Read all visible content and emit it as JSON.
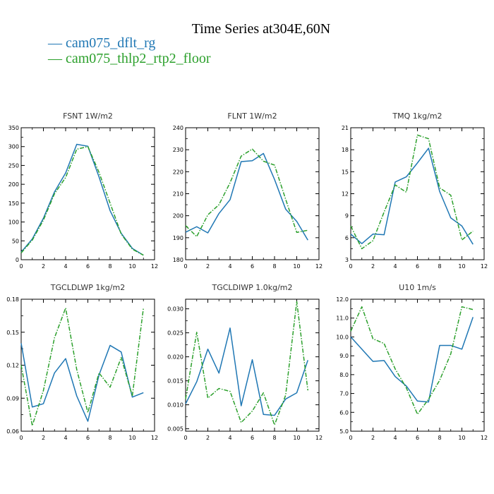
{
  "title": "Time Series at304E,60N",
  "legend": [
    {
      "dash": "—",
      "label": "cam075_dflt_rg",
      "color": "#1f77b4"
    },
    {
      "dash": "—",
      "label": "cam075_thlp2_rtp2_floor",
      "color": "#2ca02c"
    }
  ],
  "colors": {
    "series1": "#1f77b4",
    "series2": "#2ca02c"
  },
  "chart_data": [
    {
      "type": "line",
      "title": "FSNT   1W/m2",
      "x": [
        0,
        1,
        2,
        3,
        4,
        5,
        6,
        7,
        8,
        9,
        10,
        11
      ],
      "xlim": [
        0,
        12
      ],
      "xticks": [
        0,
        2,
        4,
        6,
        8,
        10,
        12
      ],
      "xtick_labels": [
        "0",
        "2",
        "4",
        "6",
        "8",
        "10",
        "12"
      ],
      "ylim": [
        0,
        350
      ],
      "yticks": [
        0,
        50,
        100,
        150,
        200,
        250,
        300,
        350
      ],
      "ytick_labels": [
        "0",
        "50",
        "100",
        "150",
        "200",
        "250",
        "300",
        "350"
      ],
      "series": [
        {
          "name": "cam075_dflt_rg",
          "values": [
            20,
            55,
            110,
            180,
            230,
            306,
            301,
            220,
            130,
            70,
            30,
            12
          ]
        },
        {
          "name": "cam075_thlp2_rtp2_floor",
          "values": [
            18,
            52,
            105,
            175,
            218,
            293,
            300,
            232,
            150,
            68,
            28,
            12
          ]
        }
      ]
    },
    {
      "type": "line",
      "title": "FLNT   1W/m2",
      "x": [
        0,
        1,
        2,
        3,
        4,
        5,
        6,
        7,
        8,
        9,
        10,
        11
      ],
      "xlim": [
        0,
        12
      ],
      "xticks": [
        0,
        2,
        4,
        6,
        8,
        10,
        12
      ],
      "xtick_labels": [
        "0",
        "2",
        "4",
        "6",
        "8",
        "10",
        "12"
      ],
      "ylim": [
        180,
        240
      ],
      "yticks": [
        180,
        190,
        200,
        210,
        220,
        230,
        240
      ],
      "ytick_labels": [
        "180",
        "190",
        "200",
        "210",
        "220",
        "230",
        "240"
      ],
      "series": [
        {
          "name": "cam075_dflt_rg",
          "values": [
            192.5,
            195,
            192.2,
            201,
            207.3,
            224.6,
            225,
            228.3,
            216.5,
            203,
            197.4,
            188.9
          ]
        },
        {
          "name": "cam075_thlp2_rtp2_floor",
          "values": [
            195.5,
            190.5,
            200.4,
            205,
            215,
            227.1,
            230.3,
            224.8,
            223,
            207.5,
            192.4,
            193.4
          ]
        }
      ]
    },
    {
      "type": "line",
      "title": "TMQ   1kg/m2",
      "x": [
        0,
        1,
        2,
        3,
        4,
        5,
        6,
        7,
        8,
        9,
        10,
        11
      ],
      "xlim": [
        0,
        12
      ],
      "xticks": [
        0,
        2,
        4,
        6,
        8,
        10,
        12
      ],
      "xtick_labels": [
        "0",
        "2",
        "4",
        "6",
        "8",
        "10",
        "12"
      ],
      "ylim": [
        3,
        21
      ],
      "yticks": [
        3,
        6,
        9,
        12,
        15,
        18,
        21
      ],
      "ytick_labels": [
        "3",
        "6",
        "9",
        "12",
        "15",
        "18",
        "21"
      ],
      "series": [
        {
          "name": "cam075_dflt_rg",
          "values": [
            6.5,
            5.2,
            6.5,
            6.4,
            13.6,
            14.3,
            16.2,
            18.2,
            12.3,
            8.7,
            7.6,
            5.1
          ]
        },
        {
          "name": "cam075_thlp2_rtp2_floor",
          "values": [
            7.6,
            4.5,
            5.6,
            9.5,
            13.2,
            12.2,
            20,
            19.5,
            12.8,
            11.8,
            5.7,
            6.9
          ]
        }
      ]
    },
    {
      "type": "line",
      "title": "TGCLDLWP   1kg/m2",
      "x": [
        0,
        1,
        2,
        3,
        4,
        5,
        6,
        7,
        8,
        9,
        10,
        11
      ],
      "xlim": [
        0,
        12
      ],
      "xticks": [
        0,
        2,
        4,
        6,
        8,
        10,
        12
      ],
      "xtick_labels": [
        "0",
        "2",
        "4",
        "6",
        "8",
        "10",
        "12"
      ],
      "ylim": [
        0.06,
        0.18
      ],
      "yticks": [
        0.06,
        0.09,
        0.12,
        0.15,
        0.18
      ],
      "ytick_labels": [
        "0.06",
        "0.09",
        "0.12",
        "0.15",
        "0.18"
      ],
      "series": [
        {
          "name": "cam075_dflt_rg",
          "values": [
            0.14,
            0.082,
            0.085,
            0.113,
            0.126,
            0.092,
            0.069,
            0.111,
            0.138,
            0.132,
            0.091,
            0.095
          ]
        },
        {
          "name": "cam075_thlp2_rtp2_floor",
          "values": [
            0.12,
            0.065,
            0.097,
            0.145,
            0.172,
            0.116,
            0.077,
            0.113,
            0.1,
            0.127,
            0.092,
            0.172
          ]
        }
      ]
    },
    {
      "type": "line",
      "title": "TGCLDIWP   1.0kg/m2",
      "x": [
        0,
        1,
        2,
        3,
        4,
        5,
        6,
        7,
        8,
        9,
        10,
        11
      ],
      "xlim": [
        0,
        12
      ],
      "xticks": [
        0,
        2,
        4,
        6,
        8,
        10,
        12
      ],
      "xtick_labels": [
        "0",
        "2",
        "4",
        "6",
        "8",
        "10",
        "12"
      ],
      "ylim": [
        0.0045,
        0.032
      ],
      "yticks": [
        0.005,
        0.01,
        0.015,
        0.02,
        0.025,
        0.03
      ],
      "ytick_labels": [
        "0.005",
        "0.010",
        "0.015",
        "0.020",
        "0.025",
        "0.030"
      ],
      "series": [
        {
          "name": "cam075_dflt_rg",
          "values": [
            0.0102,
            0.0148,
            0.0216,
            0.0166,
            0.026,
            0.0098,
            0.0194,
            0.008,
            0.0078,
            0.0112,
            0.0125,
            0.0193
          ]
        },
        {
          "name": "cam075_thlp2_rtp2_floor",
          "values": [
            0.0112,
            0.0251,
            0.0114,
            0.0134,
            0.0128,
            0.0063,
            0.0087,
            0.0125,
            0.0058,
            0.012,
            0.0315,
            0.013
          ]
        }
      ]
    },
    {
      "type": "line",
      "title": "U10   1m/s",
      "x": [
        0,
        1,
        2,
        3,
        4,
        5,
        6,
        7,
        8,
        9,
        10,
        11
      ],
      "xlim": [
        0,
        12
      ],
      "xticks": [
        0,
        2,
        4,
        6,
        8,
        10,
        12
      ],
      "xtick_labels": [
        "0",
        "2",
        "4",
        "6",
        "8",
        "10",
        "12"
      ],
      "ylim": [
        5,
        12
      ],
      "yticks": [
        5,
        6,
        7,
        8,
        9,
        10,
        11,
        12
      ],
      "ytick_labels": [
        "5.0",
        "6.0",
        "7.0",
        "8.0",
        "9.0",
        "10.0",
        "11.0",
        "12.0"
      ],
      "series": [
        {
          "name": "cam075_dflt_rg",
          "values": [
            10,
            9.35,
            8.7,
            8.75,
            7.9,
            7.4,
            6.6,
            6.55,
            9.55,
            9.55,
            9.35,
            11.05
          ]
        },
        {
          "name": "cam075_thlp2_rtp2_floor",
          "values": [
            10.3,
            11.6,
            9.9,
            9.65,
            8.3,
            7.3,
            5.9,
            6.7,
            7.7,
            9.1,
            11.6,
            11.45
          ]
        }
      ]
    }
  ]
}
